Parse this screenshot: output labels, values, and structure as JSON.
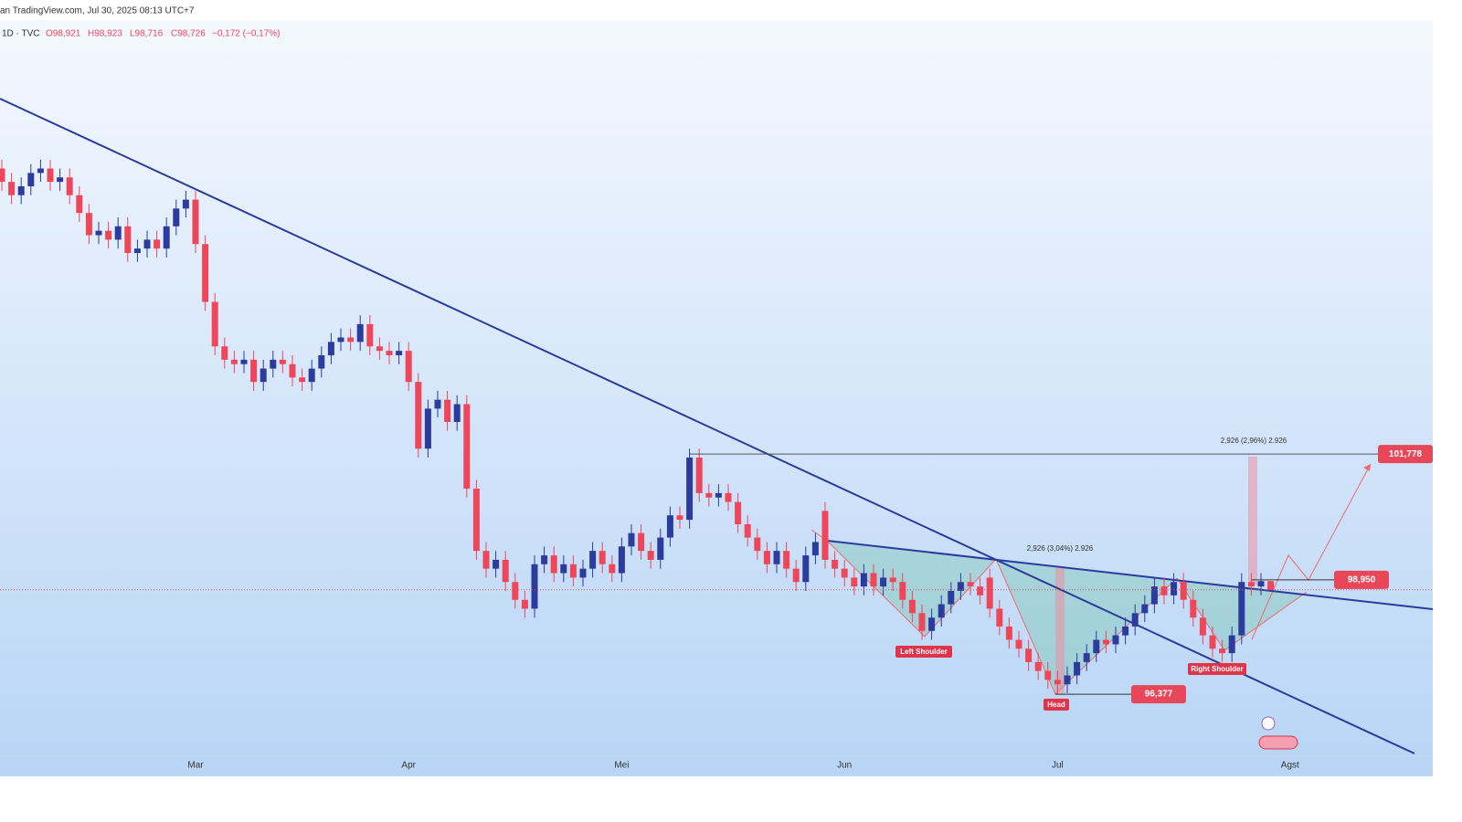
{
  "header": {
    "source": "an TradingView.com, Jul 30, 2025 08:13 UTC+7"
  },
  "legend": {
    "symbol": "1D · TVC",
    "open": "O98,921",
    "high": "H98,923",
    "low": "L98,716",
    "close": "C98,726",
    "change": "−0,172 (−0,17%)"
  },
  "chart_data": {
    "type": "candlestick",
    "up_color": "#2b3c9e",
    "down_color": "#f0465a",
    "ylim": [
      94.53,
      111.99
    ],
    "categories": [
      null,
      null,
      null,
      null,
      null,
      null,
      null,
      null,
      null,
      null,
      null,
      null,
      null,
      null,
      null,
      null,
      null,
      null,
      null,
      null,
      "Mar",
      null,
      null,
      null,
      null,
      null,
      null,
      null,
      null,
      null,
      null,
      null,
      null,
      null,
      null,
      null,
      null,
      null,
      null,
      null,
      null,
      null,
      "Apr",
      null,
      null,
      null,
      null,
      null,
      null,
      null,
      null,
      null,
      null,
      null,
      null,
      null,
      null,
      null,
      null,
      null,
      null,
      null,
      null,
      null,
      "Mei",
      null,
      null,
      null,
      null,
      null,
      null,
      null,
      null,
      null,
      null,
      null,
      null,
      null,
      null,
      null,
      null,
      null,
      null,
      null,
      null,
      null,
      null,
      "Jun",
      null,
      null,
      null,
      null,
      null,
      null,
      null,
      null,
      null,
      null,
      null,
      null,
      null,
      null,
      null,
      null,
      null,
      null,
      null,
      null,
      null,
      "Jul",
      null,
      null,
      null,
      null,
      null,
      null,
      null,
      null,
      null,
      null,
      null,
      null,
      null,
      null,
      null,
      null,
      null,
      null,
      null,
      null,
      null,
      null,
      null,
      "Agst"
    ],
    "open": [
      108.2,
      107.9,
      107.6,
      107.8,
      108.1,
      108.2,
      107.9,
      108.0,
      107.6,
      107.2,
      106.7,
      106.8,
      106.6,
      106.9,
      106.3,
      106.4,
      106.6,
      106.4,
      106.9,
      107.3,
      107.5,
      106.5,
      105.2,
      104.2,
      103.9,
      103.8,
      103.9,
      103.4,
      103.7,
      103.9,
      103.8,
      103.5,
      103.4,
      103.7,
      104.0,
      104.3,
      104.4,
      104.3,
      104.7,
      104.2,
      104.1,
      104.0,
      104.1,
      103.4,
      101.9,
      102.8,
      103.0,
      102.5,
      102.9,
      101.0,
      99.6,
      99.2,
      99.4,
      98.9,
      98.5,
      98.3,
      99.3,
      99.5,
      99.1,
      99.3,
      99.0,
      99.2,
      99.6,
      99.3,
      99.1,
      99.7,
      100.0,
      99.6,
      99.4,
      99.9,
      100.4,
      100.3,
      101.7,
      100.9,
      100.8,
      100.9,
      100.7,
      100.2,
      99.9,
      99.6,
      99.3,
      99.6,
      99.2,
      98.9,
      99.5,
      100.5,
      99.4,
      99.2,
      99.0,
      98.8,
      99.1,
      98.8,
      99.0,
      98.9,
      98.5,
      98.2,
      97.8,
      98.1,
      98.4,
      98.7,
      98.9,
      98.8,
      99.0,
      98.3,
      97.9,
      97.6,
      97.4,
      97.1,
      96.9,
      96.7,
      96.6,
      96.8,
      97.1,
      97.3,
      97.6,
      97.5,
      97.7,
      97.9,
      98.2,
      98.4,
      98.8,
      98.6,
      98.9,
      98.5,
      98.1,
      97.7,
      97.4,
      97.3,
      97.7,
      98.9,
      98.8,
      98.921,
      null,
      null
    ],
    "high": [
      108.4,
      108.1,
      108.0,
      108.3,
      108.4,
      108.4,
      108.2,
      108.2,
      107.8,
      107.4,
      107.0,
      107.0,
      107.1,
      107.1,
      106.6,
      106.8,
      106.8,
      107.1,
      107.5,
      107.7,
      107.7,
      106.7,
      105.4,
      104.4,
      104.1,
      104.1,
      104.1,
      103.9,
      104.1,
      104.1,
      104.0,
      103.7,
      103.9,
      104.2,
      104.5,
      104.6,
      104.6,
      104.9,
      104.9,
      104.4,
      104.3,
      104.3,
      104.3,
      103.6,
      103.0,
      103.2,
      103.2,
      103.1,
      103.1,
      101.2,
      99.8,
      99.6,
      99.6,
      99.1,
      98.7,
      99.5,
      99.7,
      99.7,
      99.5,
      99.5,
      99.4,
      99.8,
      99.8,
      99.5,
      99.9,
      100.2,
      100.2,
      99.8,
      100.1,
      100.6,
      100.6,
      101.9,
      101.9,
      101.1,
      101.1,
      101.1,
      100.9,
      100.4,
      100.1,
      99.8,
      99.8,
      99.8,
      99.4,
      99.7,
      100.0,
      100.7,
      99.6,
      99.4,
      99.2,
      99.3,
      99.3,
      99.2,
      99.2,
      99.1,
      98.7,
      98.4,
      98.3,
      98.6,
      98.9,
      99.1,
      99.1,
      99.0,
      99.2,
      98.5,
      98.1,
      97.8,
      97.6,
      97.3,
      97.1,
      96.9,
      97.0,
      97.3,
      97.5,
      97.8,
      97.8,
      97.9,
      98.1,
      98.4,
      98.6,
      99.0,
      99.0,
      99.1,
      99.1,
      98.7,
      98.3,
      97.9,
      97.6,
      97.9,
      99.1,
      99.1,
      99.1,
      98.923,
      null,
      null
    ],
    "low": [
      107.7,
      107.4,
      107.4,
      107.6,
      107.9,
      107.7,
      107.7,
      107.4,
      107.0,
      106.5,
      106.5,
      106.4,
      106.4,
      106.1,
      106.1,
      106.2,
      106.2,
      106.2,
      106.7,
      107.1,
      106.3,
      105.0,
      104.0,
      103.7,
      103.6,
      103.6,
      103.2,
      103.2,
      103.5,
      103.6,
      103.3,
      103.2,
      103.2,
      103.5,
      103.8,
      104.1,
      104.1,
      104.1,
      104.0,
      103.9,
      103.8,
      103.8,
      103.2,
      101.7,
      101.7,
      102.6,
      102.3,
      102.3,
      100.8,
      99.4,
      99.0,
      99.0,
      98.7,
      98.3,
      98.1,
      98.1,
      99.1,
      98.9,
      98.9,
      98.8,
      98.8,
      99.0,
      99.1,
      98.9,
      98.9,
      99.5,
      99.4,
      99.2,
      99.2,
      99.7,
      100.1,
      100.1,
      100.7,
      100.6,
      100.6,
      100.5,
      100.0,
      99.7,
      99.4,
      99.1,
      99.1,
      99.0,
      98.7,
      98.7,
      99.3,
      99.2,
      99.0,
      98.8,
      98.6,
      98.6,
      98.6,
      98.6,
      98.7,
      98.3,
      98.0,
      97.6,
      97.6,
      97.9,
      98.2,
      98.5,
      98.6,
      98.4,
      98.1,
      97.7,
      97.4,
      97.2,
      96.9,
      96.7,
      96.5,
      96.377,
      96.4,
      96.6,
      96.9,
      97.1,
      97.3,
      97.3,
      97.5,
      97.7,
      98.0,
      98.2,
      98.4,
      98.4,
      98.3,
      97.9,
      97.5,
      97.2,
      97.1,
      97.1,
      97.5,
      98.6,
      98.6,
      98.716,
      null,
      null
    ],
    "close": [
      107.9,
      107.6,
      107.8,
      108.1,
      108.2,
      107.9,
      108.0,
      107.6,
      107.2,
      106.7,
      106.8,
      106.6,
      106.9,
      106.3,
      106.4,
      106.6,
      106.4,
      106.9,
      107.3,
      107.5,
      106.5,
      105.2,
      104.2,
      103.9,
      103.8,
      103.9,
      103.4,
      103.7,
      103.9,
      103.8,
      103.5,
      103.4,
      103.7,
      104.0,
      104.3,
      104.4,
      104.3,
      104.7,
      104.2,
      104.1,
      104.0,
      104.1,
      103.4,
      101.9,
      102.8,
      103.0,
      102.5,
      102.9,
      101.0,
      99.6,
      99.2,
      99.4,
      98.9,
      98.5,
      98.3,
      99.3,
      99.5,
      99.1,
      99.3,
      99.0,
      99.2,
      99.6,
      99.3,
      99.1,
      99.7,
      100.0,
      99.6,
      99.4,
      99.9,
      100.4,
      100.3,
      101.7,
      100.9,
      100.8,
      100.9,
      100.7,
      100.2,
      99.9,
      99.6,
      99.3,
      99.6,
      99.2,
      98.9,
      99.5,
      99.8,
      99.4,
      99.2,
      99.0,
      98.8,
      99.1,
      98.8,
      99.0,
      98.9,
      98.5,
      98.2,
      97.8,
      98.1,
      98.4,
      98.7,
      98.9,
      98.8,
      98.6,
      98.3,
      97.9,
      97.6,
      97.4,
      97.1,
      96.9,
      96.7,
      96.6,
      96.8,
      97.1,
      97.3,
      97.6,
      97.5,
      97.7,
      97.9,
      98.2,
      98.4,
      98.8,
      98.6,
      98.9,
      98.5,
      98.1,
      97.7,
      97.4,
      97.3,
      97.7,
      98.9,
      98.8,
      98.92,
      98.726,
      null,
      null
    ],
    "levels": [
      {
        "value": 101.778,
        "label": "101,778"
      },
      {
        "value": 98.95,
        "label": "98,950"
      },
      {
        "value": 96.377,
        "label": "96,377"
      }
    ],
    "annotations": {
      "left_shoulder": "Left Shoulder",
      "head": "Head",
      "right_shoulder": "Right Shoulder",
      "measure_1": "2,926 (3,04%) 2.926",
      "measure_2": "2,926 (2,96%) 2.926"
    }
  }
}
